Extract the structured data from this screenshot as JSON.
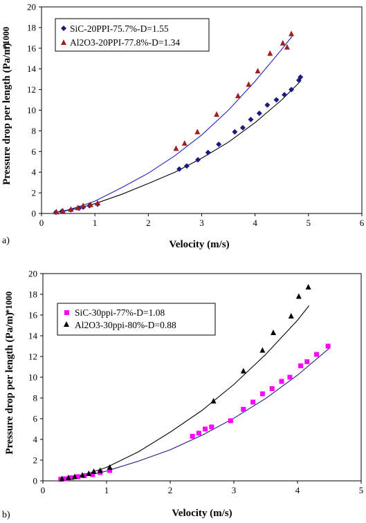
{
  "chart_data": [
    {
      "type": "scatter",
      "panel_label": "a)",
      "xlabel": "Velocity (m/s)",
      "ylabel": "Pressure drop per length (Pa/m)",
      "ylabel_multiplier": "*1000",
      "xlim": [
        0,
        6
      ],
      "ylim": [
        0,
        20
      ],
      "xticks": [
        "0",
        "1",
        "2",
        "3",
        "4",
        "5",
        "6"
      ],
      "yticks": [
        "0",
        "2",
        "4",
        "6",
        "8",
        "10",
        "12",
        "14",
        "16",
        "18",
        "20"
      ],
      "grid": false,
      "legend_position": "top-left",
      "series": [
        {
          "name": "SiC-20PPI-75.7%-D=1.55",
          "marker": "diamond",
          "color": "#1a1a80",
          "fit_color": "#000000",
          "points": [
            [
              0.27,
              0.12
            ],
            [
              0.38,
              0.2
            ],
            [
              0.55,
              0.35
            ],
            [
              0.7,
              0.5
            ],
            [
              0.78,
              0.62
            ],
            [
              0.9,
              0.75
            ],
            [
              1.05,
              0.9
            ],
            [
              2.58,
              4.3
            ],
            [
              2.72,
              4.6
            ],
            [
              2.93,
              5.2
            ],
            [
              3.12,
              5.9
            ],
            [
              3.32,
              6.7
            ],
            [
              3.62,
              7.9
            ],
            [
              3.77,
              8.3
            ],
            [
              3.92,
              9.1
            ],
            [
              4.08,
              9.7
            ],
            [
              4.23,
              10.5
            ],
            [
              4.4,
              11.0
            ],
            [
              4.55,
              11.5
            ],
            [
              4.68,
              12.0
            ],
            [
              4.82,
              12.9
            ],
            [
              4.85,
              13.2
            ]
          ],
          "fit": [
            [
              0.25,
              0.08
            ],
            [
              0.5,
              0.3
            ],
            [
              0.75,
              0.6
            ],
            [
              1.0,
              0.95
            ],
            [
              1.5,
              1.85
            ],
            [
              2.0,
              2.9
            ],
            [
              2.5,
              4.0
            ],
            [
              3.0,
              5.35
            ],
            [
              3.5,
              6.9
            ],
            [
              4.0,
              8.8
            ],
            [
              4.5,
              11.0
            ],
            [
              4.85,
              12.8
            ]
          ]
        },
        {
          "name": "Al2O3-20PPI-77.8%-D=1.34",
          "marker": "triangle",
          "color": "#a02020",
          "fit_color": "#2020c0",
          "points": [
            [
              0.28,
              0.15
            ],
            [
              0.4,
              0.25
            ],
            [
              0.55,
              0.4
            ],
            [
              0.68,
              0.55
            ],
            [
              0.78,
              0.75
            ],
            [
              0.92,
              0.85
            ],
            [
              1.05,
              1.0
            ],
            [
              2.52,
              6.3
            ],
            [
              2.68,
              6.8
            ],
            [
              2.92,
              7.9
            ],
            [
              3.28,
              9.6
            ],
            [
              3.68,
              11.4
            ],
            [
              3.88,
              12.5
            ],
            [
              4.05,
              13.8
            ],
            [
              4.28,
              15.5
            ],
            [
              4.52,
              16.5
            ],
            [
              4.6,
              16.1
            ],
            [
              4.68,
              17.4
            ]
          ],
          "fit": [
            [
              0.25,
              0.1
            ],
            [
              0.5,
              0.35
            ],
            [
              0.75,
              0.75
            ],
            [
              1.0,
              1.2
            ],
            [
              1.5,
              2.5
            ],
            [
              2.0,
              3.9
            ],
            [
              2.5,
              5.6
            ],
            [
              3.0,
              7.6
            ],
            [
              3.5,
              10.0
            ],
            [
              4.0,
              12.8
            ],
            [
              4.5,
              15.9
            ],
            [
              4.7,
              17.2
            ]
          ]
        }
      ]
    },
    {
      "type": "scatter",
      "panel_label": "b)",
      "xlabel": "Velocity (m/s)",
      "ylabel": "Pressure drop per length (Pa/m)",
      "ylabel_multiplier": "*1000",
      "xlim": [
        0,
        5
      ],
      "ylim": [
        0,
        20
      ],
      "xticks": [
        "0",
        "1",
        "2",
        "3",
        "4",
        "5"
      ],
      "yticks": [
        "0",
        "2",
        "4",
        "6",
        "8",
        "10",
        "12",
        "14",
        "16",
        "18",
        "20"
      ],
      "grid": false,
      "legend_position": "top-left",
      "series": [
        {
          "name": "SiC-30ppi-77%-D=1.08",
          "marker": "square",
          "color": "#ff00ff",
          "fit_color": "#1a1a80",
          "points": [
            [
              0.28,
              0.15
            ],
            [
              0.35,
              0.2
            ],
            [
              0.45,
              0.3
            ],
            [
              0.55,
              0.4
            ],
            [
              0.65,
              0.5
            ],
            [
              0.78,
              0.6
            ],
            [
              0.9,
              0.8
            ],
            [
              1.05,
              1.0
            ],
            [
              2.35,
              4.3
            ],
            [
              2.45,
              4.6
            ],
            [
              2.55,
              5.0
            ],
            [
              2.65,
              5.2
            ],
            [
              2.95,
              5.8
            ],
            [
              3.15,
              6.9
            ],
            [
              3.3,
              7.6
            ],
            [
              3.45,
              8.4
            ],
            [
              3.6,
              8.9
            ],
            [
              3.75,
              9.6
            ],
            [
              3.88,
              10.0
            ],
            [
              4.05,
              11.1
            ],
            [
              4.15,
              11.5
            ],
            [
              4.3,
              12.2
            ],
            [
              4.48,
              13.0
            ]
          ],
          "fit": [
            [
              0.25,
              0.12
            ],
            [
              0.5,
              0.3
            ],
            [
              0.75,
              0.6
            ],
            [
              1.0,
              0.95
            ],
            [
              1.5,
              1.9
            ],
            [
              2.0,
              3.0
            ],
            [
              2.5,
              4.4
            ],
            [
              3.0,
              6.05
            ],
            [
              3.5,
              7.95
            ],
            [
              4.0,
              10.2
            ],
            [
              4.5,
              12.8
            ]
          ]
        },
        {
          "name": "Al2O3-30ppi-80%-D=0.88",
          "marker": "triangle",
          "color": "#000000",
          "fit_color": "#000000",
          "points": [
            [
              0.3,
              0.2
            ],
            [
              0.4,
              0.3
            ],
            [
              0.5,
              0.4
            ],
            [
              0.62,
              0.55
            ],
            [
              0.72,
              0.7
            ],
            [
              0.8,
              0.9
            ],
            [
              0.9,
              1.0
            ],
            [
              1.05,
              1.3
            ],
            [
              2.68,
              7.7
            ],
            [
              3.15,
              10.6
            ],
            [
              3.45,
              12.6
            ],
            [
              3.62,
              14.3
            ],
            [
              3.9,
              15.9
            ],
            [
              4.02,
              17.8
            ],
            [
              4.17,
              18.7
            ]
          ],
          "fit": [
            [
              0.25,
              0.1
            ],
            [
              0.5,
              0.38
            ],
            [
              0.75,
              0.8
            ],
            [
              1.0,
              1.3
            ],
            [
              1.5,
              2.8
            ],
            [
              2.0,
              4.7
            ],
            [
              2.5,
              6.8
            ],
            [
              3.0,
              9.3
            ],
            [
              3.5,
              12.2
            ],
            [
              4.0,
              15.5
            ],
            [
              4.18,
              16.9
            ]
          ]
        }
      ]
    }
  ]
}
